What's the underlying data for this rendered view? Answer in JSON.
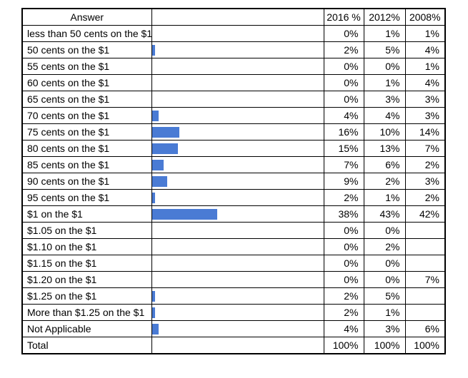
{
  "table": {
    "headers": {
      "answer": "Answer",
      "bar": "",
      "y2016": "2016 %",
      "y2012": "2012%",
      "y2008": "2008%"
    },
    "bar_color": "#4a7bd4",
    "rows": [
      {
        "answer": "less than 50 cents on the $1",
        "bar_pct": 0,
        "v2016": "0%",
        "v2012": "1%",
        "v2008": "1%"
      },
      {
        "answer": "50 cents on the $1",
        "bar_pct": 2,
        "v2016": "2%",
        "v2012": "5%",
        "v2008": "4%"
      },
      {
        "answer": "55 cents on the $1",
        "bar_pct": 0,
        "v2016": "0%",
        "v2012": "0%",
        "v2008": "1%"
      },
      {
        "answer": "60 cents on the $1",
        "bar_pct": 0,
        "v2016": "0%",
        "v2012": "1%",
        "v2008": "4%"
      },
      {
        "answer": "65 cents on the $1",
        "bar_pct": 0,
        "v2016": "0%",
        "v2012": "3%",
        "v2008": "3%"
      },
      {
        "answer": "70 cents on the $1",
        "bar_pct": 4,
        "v2016": "4%",
        "v2012": "4%",
        "v2008": "3%"
      },
      {
        "answer": "75 cents on the $1",
        "bar_pct": 16,
        "v2016": "16%",
        "v2012": "10%",
        "v2008": "14%"
      },
      {
        "answer": "80 cents on the $1",
        "bar_pct": 15,
        "v2016": "15%",
        "v2012": "13%",
        "v2008": "7%"
      },
      {
        "answer": "85 cents on the $1",
        "bar_pct": 7,
        "v2016": "7%",
        "v2012": "6%",
        "v2008": "2%"
      },
      {
        "answer": "90 cents on the $1",
        "bar_pct": 9,
        "v2016": "9%",
        "v2012": "2%",
        "v2008": "3%"
      },
      {
        "answer": "95 cents on the $1",
        "bar_pct": 2,
        "v2016": "2%",
        "v2012": "1%",
        "v2008": "2%"
      },
      {
        "answer": "$1 on the $1",
        "bar_pct": 38,
        "v2016": "38%",
        "v2012": "43%",
        "v2008": "42%"
      },
      {
        "answer": "$1.05 on the $1",
        "bar_pct": 0,
        "v2016": "0%",
        "v2012": "0%",
        "v2008": ""
      },
      {
        "answer": "$1.10 on the $1",
        "bar_pct": 0,
        "v2016": "0%",
        "v2012": "2%",
        "v2008": ""
      },
      {
        "answer": "$1.15 on the $1",
        "bar_pct": 0,
        "v2016": "0%",
        "v2012": "0%",
        "v2008": ""
      },
      {
        "answer": "$1.20 on the $1",
        "bar_pct": 0,
        "v2016": "0%",
        "v2012": "0%",
        "v2008": "7%"
      },
      {
        "answer": "$1.25 on the $1",
        "bar_pct": 2,
        "v2016": "2%",
        "v2012": "5%",
        "v2008": ""
      },
      {
        "answer": "More than $1.25 on the $1",
        "bar_pct": 2,
        "v2016": "2%",
        "v2012": "1%",
        "v2008": ""
      },
      {
        "answer": "Not Applicable",
        "bar_pct": 4,
        "v2016": "4%",
        "v2012": "3%",
        "v2008": "6%"
      },
      {
        "answer": "Total",
        "bar_pct": 0,
        "v2016": "100%",
        "v2012": "100%",
        "v2008": "100%"
      }
    ]
  },
  "chart_data": {
    "type": "table",
    "categories": [
      "less than 50 cents on the $1",
      "50 cents on the $1",
      "55 cents on the $1",
      "60 cents on the $1",
      "65 cents on the $1",
      "70 cents on the $1",
      "75 cents on the $1",
      "80 cents on the $1",
      "85 cents on the $1",
      "90 cents on the $1",
      "95 cents on the $1",
      "$1 on the $1",
      "$1.05 on the $1",
      "$1.10 on the $1",
      "$1.15 on the $1",
      "$1.20 on the $1",
      "$1.25 on the $1",
      "More than $1.25 on the $1",
      "Not Applicable",
      "Total"
    ],
    "series": [
      {
        "name": "2016 %",
        "values": [
          0,
          2,
          0,
          0,
          0,
          4,
          16,
          15,
          7,
          9,
          2,
          38,
          0,
          0,
          0,
          0,
          2,
          2,
          4,
          100
        ]
      },
      {
        "name": "2012%",
        "values": [
          1,
          5,
          0,
          1,
          3,
          4,
          10,
          13,
          6,
          2,
          1,
          43,
          0,
          2,
          0,
          0,
          5,
          1,
          3,
          100
        ]
      },
      {
        "name": "2008%",
        "values": [
          1,
          4,
          1,
          4,
          3,
          3,
          14,
          7,
          2,
          3,
          2,
          42,
          null,
          null,
          null,
          7,
          null,
          null,
          6,
          100
        ]
      }
    ],
    "bar_column": {
      "based_on": "2016 %",
      "axis_min": 0,
      "axis_max": 100,
      "color": "#4a7bd4"
    },
    "layout": {
      "grid": true,
      "legend_position": "none",
      "header_row": [
        "Answer",
        "",
        "2016 %",
        "2012%",
        "2008%"
      ]
    }
  }
}
